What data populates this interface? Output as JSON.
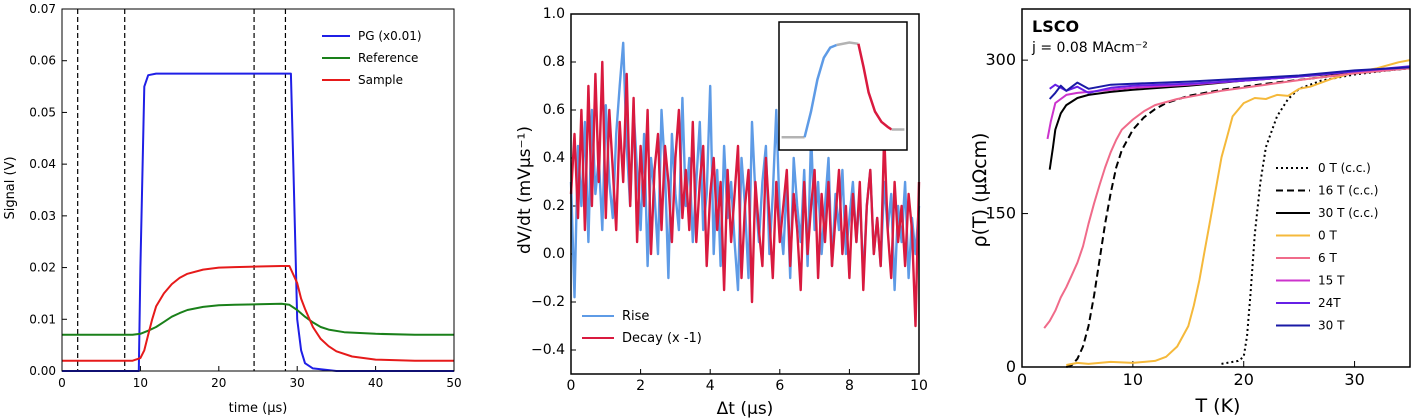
{
  "chart_data": [
    {
      "type": "line",
      "ylabel": "Signal (V)",
      "xlabel": "time (μs)",
      "xlim": [
        0,
        50
      ],
      "ylim": [
        0,
        0.07
      ],
      "xticks": [
        "0",
        "10",
        "20",
        "30",
        "40",
        "50"
      ],
      "yticks": [
        "0.00",
        "0.01",
        "0.02",
        "0.03",
        "0.04",
        "0.05",
        "0.06",
        "0.07"
      ],
      "legend_position": "top-right",
      "vlines": [
        2,
        8,
        24.5,
        28.5
      ],
      "series": [
        {
          "name": "PG (x0.01)",
          "color": "#1f1fe6",
          "x": [
            0,
            9.8,
            10.0,
            10.5,
            11,
            12,
            20,
            29.2,
            29.5,
            30,
            30.5,
            31,
            32,
            35,
            50
          ],
          "y": [
            0.0,
            0.0,
            0.02,
            0.055,
            0.0572,
            0.0575,
            0.0575,
            0.0575,
            0.04,
            0.01,
            0.004,
            0.0015,
            0.0005,
            0.0,
            0.0
          ]
        },
        {
          "name": "Reference",
          "color": "#1a801a",
          "x": [
            0,
            5,
            9,
            10,
            11,
            12,
            13,
            14,
            15,
            16,
            18,
            20,
            22,
            25,
            28,
            29,
            30,
            31,
            32,
            33,
            34,
            36,
            40,
            45,
            50
          ],
          "y": [
            0.007,
            0.007,
            0.007,
            0.0072,
            0.0078,
            0.0085,
            0.0095,
            0.0105,
            0.0112,
            0.0118,
            0.0124,
            0.0127,
            0.0128,
            0.0129,
            0.013,
            0.0128,
            0.0118,
            0.0105,
            0.0094,
            0.0085,
            0.008,
            0.0075,
            0.0072,
            0.007,
            0.007
          ]
        },
        {
          "name": "Sample",
          "color": "#e61a1a",
          "x": [
            0,
            5,
            9,
            10,
            10.5,
            11,
            11.5,
            12,
            13,
            14,
            15,
            16,
            18,
            20,
            22,
            25,
            28,
            29,
            30,
            30.5,
            31,
            32,
            33,
            34,
            35,
            37,
            40,
            45,
            50
          ],
          "y": [
            0.002,
            0.002,
            0.002,
            0.0025,
            0.004,
            0.007,
            0.01,
            0.0125,
            0.015,
            0.0168,
            0.018,
            0.0188,
            0.0196,
            0.02,
            0.0201,
            0.0202,
            0.0203,
            0.0203,
            0.017,
            0.014,
            0.012,
            0.0085,
            0.0062,
            0.0048,
            0.0038,
            0.0028,
            0.0022,
            0.002,
            0.002
          ]
        }
      ]
    },
    {
      "type": "line",
      "ylabel": "dV/dt (mVμs⁻¹)",
      "xlabel": "Δt (μs)",
      "xlim": [
        0,
        10
      ],
      "ylim": [
        -0.5,
        1.0
      ],
      "xticks": [
        "0",
        "2",
        "4",
        "6",
        "8",
        "10"
      ],
      "yticks": [
        "−0.4",
        "−0.2",
        "0.0",
        "0.2",
        "0.4",
        "0.6",
        "0.8",
        "1.0"
      ],
      "legend_position": "bottom-left",
      "series": [
        {
          "name": "Rise",
          "color": "#5e9be6",
          "x": [
            0,
            0.1,
            0.2,
            0.3,
            0.4,
            0.5,
            0.6,
            0.7,
            0.8,
            0.9,
            1.0,
            1.1,
            1.2,
            1.3,
            1.4,
            1.5,
            1.6,
            1.7,
            1.8,
            1.9,
            2.0,
            2.1,
            2.2,
            2.3,
            2.4,
            2.5,
            2.6,
            2.7,
            2.8,
            2.9,
            3.0,
            3.1,
            3.2,
            3.3,
            3.4,
            3.5,
            3.6,
            3.7,
            3.8,
            3.9,
            4.0,
            4.1,
            4.2,
            4.3,
            4.4,
            4.5,
            4.6,
            4.7,
            4.8,
            4.9,
            5.0,
            5.1,
            5.2,
            5.3,
            5.4,
            5.5,
            5.6,
            5.7,
            5.8,
            5.9,
            6.0,
            6.1,
            6.2,
            6.3,
            6.4,
            6.5,
            6.6,
            6.7,
            6.8,
            6.9,
            7.0,
            7.1,
            7.2,
            7.3,
            7.4,
            7.5,
            7.6,
            7.7,
            7.8,
            7.9,
            8.0,
            8.1,
            8.2,
            8.3,
            8.4,
            8.5,
            8.6,
            8.7,
            8.8,
            8.9,
            9.0,
            9.1,
            9.2,
            9.3,
            9.4,
            9.5,
            9.6,
            9.7,
            9.8,
            9.9,
            10.0
          ],
          "y": [
            0.3,
            -0.18,
            0.45,
            0.2,
            0.55,
            0.05,
            0.6,
            0.25,
            0.4,
            0.1,
            0.62,
            0.3,
            0.15,
            0.5,
            0.7,
            0.88,
            0.45,
            0.2,
            0.6,
            0.35,
            0.1,
            0.5,
            -0.05,
            0.4,
            0.25,
            0.0,
            0.6,
            0.35,
            -0.1,
            0.5,
            0.25,
            0.1,
            0.65,
            0.2,
            0.4,
            0.05,
            0.3,
            0.55,
            0.1,
            0.25,
            0.7,
            0.0,
            0.35,
            -0.05,
            0.45,
            0.15,
            0.3,
            0.05,
            -0.15,
            0.4,
            0.2,
            -0.1,
            0.55,
            0.25,
            0.05,
            0.3,
            0.45,
            0.0,
            0.25,
            0.6,
            0.15,
            0.0,
            0.3,
            -0.1,
            0.4,
            0.2,
            0.05,
            0.35,
            -0.05,
            0.5,
            0.1,
            0.3,
            0.0,
            0.2,
            0.4,
            -0.05,
            0.25,
            0.1,
            0.35,
            0.0,
            0.15,
            0.3,
            0.05,
            0.25,
            -0.1,
            0.2,
            0.35,
            0.0,
            0.15,
            -0.05,
            0.3,
            0.1,
            0.25,
            -0.15,
            0.2,
            0.05,
            0.3,
            -0.1,
            0.15,
            0.0,
            0.2
          ]
        },
        {
          "name": "Decay (x -1)",
          "color": "#d91a3f",
          "x": [
            0,
            0.1,
            0.2,
            0.3,
            0.4,
            0.5,
            0.6,
            0.7,
            0.8,
            0.9,
            1.0,
            1.1,
            1.2,
            1.3,
            1.4,
            1.5,
            1.6,
            1.7,
            1.8,
            1.9,
            2.0,
            2.1,
            2.2,
            2.3,
            2.4,
            2.5,
            2.6,
            2.7,
            2.8,
            2.9,
            3.0,
            3.1,
            3.2,
            3.3,
            3.4,
            3.5,
            3.6,
            3.7,
            3.8,
            3.9,
            4.0,
            4.1,
            4.2,
            4.3,
            4.4,
            4.5,
            4.6,
            4.7,
            4.8,
            4.9,
            5.0,
            5.1,
            5.2,
            5.3,
            5.4,
            5.5,
            5.6,
            5.7,
            5.8,
            5.9,
            6.0,
            6.1,
            6.2,
            6.3,
            6.4,
            6.5,
            6.6,
            6.7,
            6.8,
            6.9,
            7.0,
            7.1,
            7.2,
            7.3,
            7.4,
            7.5,
            7.6,
            7.7,
            7.8,
            7.9,
            8.0,
            8.1,
            8.2,
            8.3,
            8.4,
            8.5,
            8.6,
            8.7,
            8.8,
            8.9,
            9.0,
            9.1,
            9.2,
            9.3,
            9.4,
            9.5,
            9.6,
            9.7,
            9.8,
            9.9,
            10.0
          ],
          "y": [
            0.25,
            0.5,
            0.15,
            0.6,
            0.1,
            0.7,
            0.2,
            0.75,
            0.3,
            0.8,
            0.15,
            0.6,
            0.35,
            0.1,
            0.55,
            0.3,
            0.75,
            0.2,
            0.65,
            0.05,
            0.45,
            0.2,
            0.6,
            0.0,
            0.35,
            0.5,
            0.1,
            0.45,
            0.3,
            0.05,
            0.4,
            0.6,
            0.15,
            0.35,
            0.1,
            0.55,
            0.05,
            0.3,
            0.45,
            -0.05,
            0.25,
            0.4,
            0.1,
            0.3,
            -0.15,
            0.35,
            0.05,
            0.25,
            0.45,
            -0.1,
            0.2,
            0.35,
            -0.2,
            0.3,
            0.1,
            -0.05,
            0.4,
            0.15,
            -0.1,
            0.3,
            0.05,
            0.2,
            0.35,
            -0.05,
            0.25,
            0.1,
            -0.15,
            0.3,
            0.0,
            0.2,
            0.35,
            -0.1,
            0.25,
            0.05,
            0.3,
            -0.05,
            0.15,
            0.35,
            0.0,
            0.2,
            -0.1,
            0.25,
            0.05,
            0.3,
            -0.15,
            0.2,
            0.35,
            0.0,
            0.15,
            -0.05,
            0.5,
            0.1,
            -0.1,
            0.3,
            0.05,
            0.2,
            -0.05,
            0.25,
            0.1,
            -0.3,
            0.3
          ]
        }
      ]
    },
    {
      "type": "line",
      "title": "LSCO",
      "subtitle": "j = 0.08 MAcm⁻²",
      "ylabel": "ρ(T) (μΩcm)",
      "xlabel": "T (K)",
      "xlim": [
        0,
        35
      ],
      "ylim": [
        0,
        350
      ],
      "xticks": [
        "0",
        "10",
        "20",
        "30"
      ],
      "yticks": [
        "0",
        "150",
        "300"
      ],
      "legend_position": "bottom-right",
      "series": [
        {
          "name": "0 T (c.c.)",
          "color": "#000000",
          "dash": "dotted",
          "x": [
            18,
            19,
            19.5,
            20,
            20.3,
            20.6,
            21,
            21.5,
            22,
            23,
            24,
            25,
            27,
            30,
            33,
            35
          ],
          "y": [
            3,
            5,
            6,
            10,
            30,
            70,
            130,
            180,
            215,
            245,
            262,
            272,
            280,
            286,
            290,
            292
          ]
        },
        {
          "name": "16 T (c.c.)",
          "color": "#000000",
          "dash": "dashed",
          "x": [
            4,
            4.5,
            5,
            5.5,
            6,
            6.5,
            7,
            7.5,
            8,
            8.5,
            9,
            10,
            11,
            12,
            13,
            15,
            18,
            22,
            26,
            30,
            35
          ],
          "y": [
            0,
            2,
            8,
            20,
            40,
            70,
            105,
            140,
            170,
            195,
            212,
            232,
            244,
            252,
            258,
            265,
            271,
            277,
            282,
            287,
            292
          ]
        },
        {
          "name": "30 T (c.c.)",
          "color": "#000000",
          "dash": "solid",
          "x": [
            2.5,
            2.8,
            3,
            3.5,
            4,
            5,
            6,
            8,
            10,
            15,
            20,
            25,
            30,
            35
          ],
          "y": [
            193,
            215,
            232,
            248,
            256,
            263,
            266,
            269,
            271,
            275,
            280,
            284,
            288,
            292
          ]
        },
        {
          "name": "0 T",
          "color": "#f5b93b",
          "dash": "solid",
          "x": [
            4,
            5,
            6,
            8,
            10,
            12,
            13,
            14,
            15,
            15.5,
            16,
            16.5,
            17,
            17.5,
            18,
            18.5,
            19,
            20,
            21,
            22,
            23,
            24,
            25,
            26,
            28,
            30,
            32,
            34,
            35
          ],
          "y": [
            2,
            4,
            3,
            5,
            4,
            6,
            10,
            20,
            40,
            60,
            85,
            115,
            145,
            175,
            205,
            225,
            245,
            258,
            263,
            262,
            266,
            265,
            272,
            274,
            282,
            288,
            292,
            298,
            300
          ]
        },
        {
          "name": "6 T",
          "color": "#f06b8a",
          "dash": "solid",
          "x": [
            2,
            2.5,
            3,
            3.5,
            4,
            4.5,
            5,
            5.5,
            6,
            6.5,
            7,
            7.5,
            8,
            8.5,
            9,
            10,
            11,
            12,
            14,
            18,
            22,
            26,
            30,
            35
          ],
          "y": [
            38,
            45,
            55,
            68,
            78,
            90,
            102,
            118,
            140,
            160,
            178,
            195,
            210,
            222,
            232,
            242,
            250,
            256,
            262,
            270,
            276,
            282,
            287,
            292
          ]
        },
        {
          "name": "15 T",
          "color": "#cc33cc",
          "dash": "solid",
          "x": [
            2.3,
            2.6,
            3,
            3.5,
            4,
            5,
            6,
            8,
            10,
            15,
            20,
            25,
            30,
            35
          ],
          "y": [
            223,
            240,
            258,
            262,
            266,
            268,
            269,
            271,
            273,
            276,
            280,
            284,
            289,
            293
          ]
        },
        {
          "name": "24T",
          "color": "#6620e6",
          "dash": "solid",
          "x": [
            2.5,
            3,
            4,
            5,
            6,
            8,
            10,
            15,
            20,
            25,
            30,
            35
          ],
          "y": [
            272,
            276,
            270,
            274,
            268,
            273,
            275,
            277,
            280,
            284,
            289,
            294
          ]
        },
        {
          "name": "30 T",
          "color": "#1a1aa6",
          "dash": "solid",
          "x": [
            2.5,
            3,
            3.5,
            4,
            5,
            6,
            8,
            10,
            15,
            20,
            25,
            30,
            35
          ],
          "y": [
            262,
            268,
            275,
            270,
            278,
            272,
            276,
            277,
            279,
            282,
            285,
            290,
            293
          ]
        }
      ]
    }
  ]
}
